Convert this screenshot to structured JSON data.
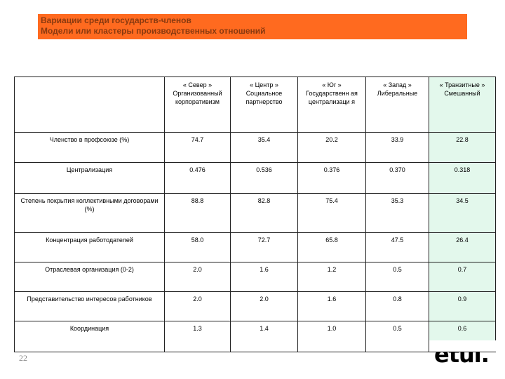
{
  "title": {
    "line1": "Вариации среди государств-членов",
    "line2": "Модели или кластеры производственных отношений"
  },
  "table": {
    "columns": [
      "« Север » Организованный корпоративизм",
      "« Центр » Социальное партнерство",
      "« Юг » Государственн ая централизаци я",
      "« Запад » Либеральные",
      "« Транзитные » Смешанный"
    ],
    "rows": [
      {
        "label": "Членство в профсоюзе (%)",
        "values": [
          "74.7",
          "35.4",
          "20.2",
          "33.9",
          "22.8"
        ]
      },
      {
        "label": "Централизация",
        "values": [
          "0.476",
          "0.536",
          "0.376",
          "0.370",
          "0.318"
        ]
      },
      {
        "label": "Степень покрытия коллективными договорами (%)",
        "values": [
          "88.8",
          "82.8",
          "75.4",
          "35.3",
          "34.5"
        ]
      },
      {
        "label": "Концентрация работодателей",
        "values": [
          "58.0",
          "72.7",
          "65.8",
          "47.5",
          "26.4"
        ]
      },
      {
        "label": "Отраслевая организация (0-2)",
        "values": [
          "2.0",
          "1.6",
          "1.2",
          "0.5",
          "0.7"
        ]
      },
      {
        "label": "Представительство интересов работников",
        "values": [
          "2.0",
          "2.0",
          "1.6",
          "0.8",
          "0.9"
        ]
      },
      {
        "label": "Координация",
        "values": [
          "1.3",
          "1.4",
          "1.0",
          "0.5",
          "0.6"
        ]
      }
    ]
  },
  "page_number": "22",
  "logo_text": "etui.",
  "colors": {
    "title_background": "#ff6a1f",
    "title_text": "#8a3a10",
    "highlight_column": "#e3f8ec"
  }
}
